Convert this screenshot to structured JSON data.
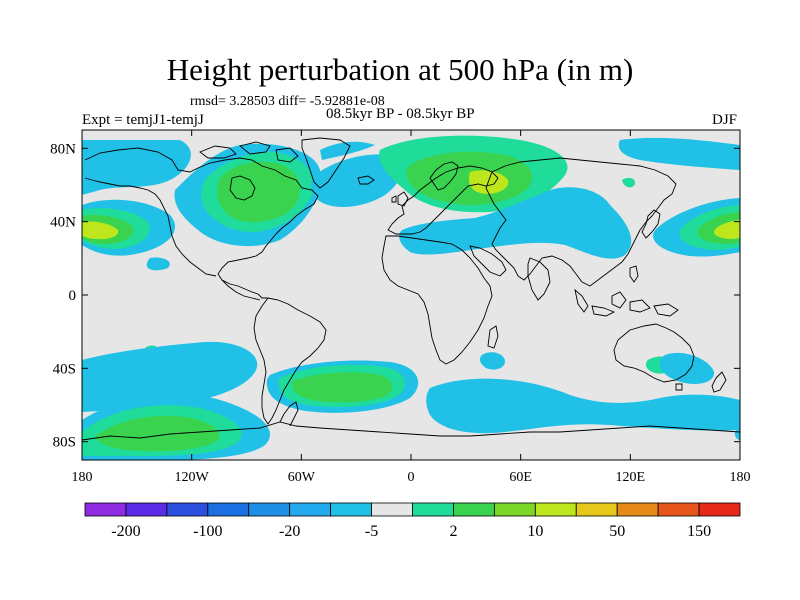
{
  "title": "Height perturbation at 500 hPa (in m)",
  "stats_line": "rmsd= 3.28503 diff= -5.92881e-08",
  "period_line": "08.5kyr BP - 08.5kyr BP",
  "experiment_label": "Expt = temjJ1-temjJ",
  "season_label": "DJF",
  "lat_labels": [
    "80N",
    "40N",
    "0",
    "40S",
    "80S"
  ],
  "lon_labels": [
    "180",
    "120W",
    "60W",
    "0",
    "60E",
    "120E",
    "180"
  ],
  "colorbar": {
    "colors": [
      "#8f2be0",
      "#5a2ce6",
      "#2d4fe0",
      "#1c6fe0",
      "#1f8fe6",
      "#23aaee",
      "#21c0e6",
      "#e6e6e6",
      "#1fdc9a",
      "#3ad34f",
      "#7cd62a",
      "#bde61c",
      "#e6c81a",
      "#e68a1a",
      "#e6561a",
      "#e62a1a"
    ],
    "labels": [
      "-200",
      "-100",
      "-20",
      "-5",
      "2",
      "10",
      "50",
      "150"
    ]
  },
  "field_colors": {
    "neutral": "#e6e6e6",
    "cyan": "#21c0e6",
    "aqua": "#1fdc9a",
    "green": "#3ad34f",
    "yellowgreen": "#bde61c"
  }
}
